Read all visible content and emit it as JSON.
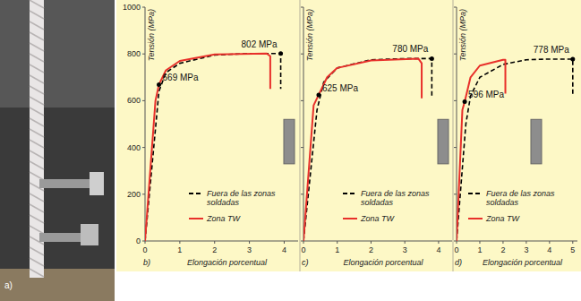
{
  "photo": {
    "label": "a)"
  },
  "chart_data": [
    {
      "type": "line",
      "panel": "b)",
      "x_label": "Elongación porcentual",
      "y_label": "Tensión (MPa)",
      "xlim": [
        0,
        4.4
      ],
      "ylim": [
        0,
        1000
      ],
      "xticks": [
        0,
        1,
        2,
        3,
        4
      ],
      "yticks": [
        0,
        200,
        400,
        600,
        800,
        1000
      ],
      "tick_labels": true,
      "grid": false,
      "legend": "lower right",
      "series": [
        {
          "name": "Fuera de las zonas soldadas",
          "color": "#000000",
          "line_style": "dashed",
          "x": [
            0,
            0.4,
            0.6,
            1,
            2,
            3,
            3.9,
            3.9
          ],
          "values": [
            0,
            640,
            720,
            760,
            795,
            802,
            802,
            650
          ]
        },
        {
          "name": "Zona TW",
          "color": "#e8302a",
          "line_style": "solid",
          "x": [
            0,
            0.3,
            0.4,
            0.6,
            1,
            2,
            3.5,
            3.6,
            3.6
          ],
          "values": [
            0,
            600,
            669,
            730,
            770,
            798,
            802,
            790,
            650
          ]
        }
      ],
      "annotations": [
        {
          "label": "802 MPa",
          "x": 3.9,
          "y": 802
        },
        {
          "label": "669 MPa",
          "x": 0.4,
          "y": 669
        }
      ]
    },
    {
      "type": "line",
      "panel": "c)",
      "x_label": "Elongación porcentual",
      "y_label": "Tensión (MPa)",
      "xlim": [
        0,
        4.4
      ],
      "ylim": [
        0,
        1000
      ],
      "xticks": [
        0,
        1,
        2,
        3,
        4
      ],
      "yticks": [
        0,
        200,
        400,
        600,
        800,
        1000
      ],
      "tick_labels": "x",
      "grid": false,
      "legend": "lower right",
      "series": [
        {
          "name": "Fuera de las zonas soldadas",
          "color": "#000000",
          "line_style": "dashed",
          "x": [
            0,
            0.4,
            0.6,
            1,
            2,
            3,
            3.8,
            3.8
          ],
          "values": [
            0,
            560,
            680,
            740,
            775,
            780,
            780,
            610
          ]
        },
        {
          "name": "Zona TW",
          "color": "#e8302a",
          "line_style": "solid",
          "x": [
            0,
            0.3,
            0.45,
            0.7,
            1,
            2,
            3.4,
            3.5,
            3.5
          ],
          "values": [
            0,
            580,
            625,
            700,
            740,
            772,
            780,
            760,
            610
          ]
        }
      ],
      "annotations": [
        {
          "label": "780 MPa",
          "x": 3.8,
          "y": 780
        },
        {
          "label": "625 MPa",
          "x": 0.45,
          "y": 625
        }
      ]
    },
    {
      "type": "line",
      "panel": "d)",
      "x_label": "Elongación porcentual",
      "y_label": "Tensión (MPa)",
      "xlim": [
        0,
        5.2
      ],
      "ylim": [
        0,
        1000
      ],
      "xticks": [
        0,
        1,
        2,
        3,
        4,
        5
      ],
      "yticks": [
        0,
        200,
        400,
        600,
        800,
        1000
      ],
      "tick_labels": "x",
      "grid": false,
      "legend": "lower right",
      "series": [
        {
          "name": "Fuera de las zonas soldadas",
          "color": "#000000",
          "line_style": "dashed",
          "x": [
            0,
            0.4,
            0.6,
            1,
            2,
            3,
            4,
            5,
            5
          ],
          "values": [
            0,
            500,
            620,
            700,
            755,
            775,
            778,
            778,
            625
          ]
        },
        {
          "name": "Zona TW",
          "color": "#e8302a",
          "line_style": "solid",
          "x": [
            0,
            0.25,
            0.35,
            0.6,
            1,
            2,
            2.1,
            2.1
          ],
          "values": [
            0,
            560,
            596,
            700,
            750,
            775,
            775,
            630
          ]
        }
      ],
      "annotations": [
        {
          "label": "778 MPa",
          "x": 5,
          "y": 778
        },
        {
          "label": "596 MPa",
          "x": 0.35,
          "y": 596
        }
      ]
    }
  ]
}
